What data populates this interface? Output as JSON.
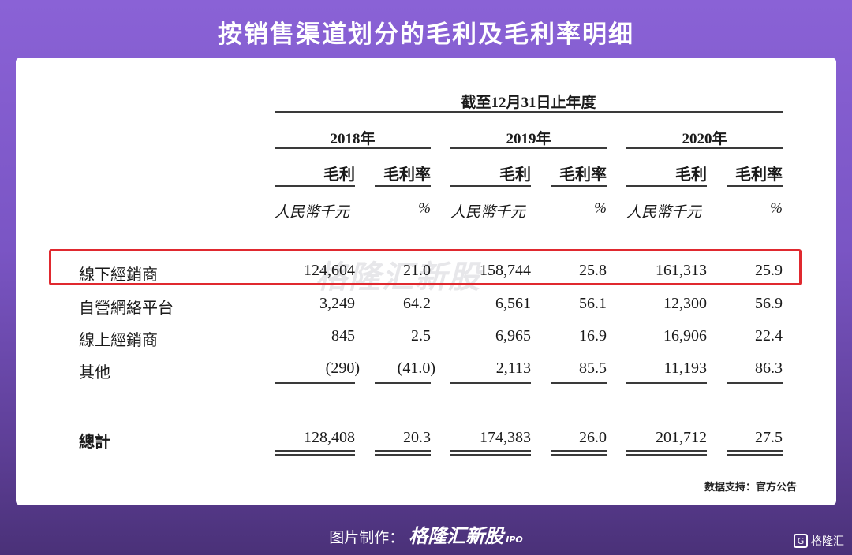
{
  "title": "按销售渠道划分的毛利及毛利率明细",
  "table": {
    "span_title": "截至12月31日止年度",
    "years": [
      "2018年",
      "2019年",
      "2020年"
    ],
    "col_headers": [
      "毛利",
      "毛利率",
      "毛利",
      "毛利率",
      "毛利",
      "毛利率"
    ],
    "units": [
      "人民幣千元",
      "%",
      "人民幣千元",
      "%",
      "人民幣千元",
      "%"
    ],
    "rows": [
      {
        "label": "線下經銷商",
        "values": [
          "124,604",
          "21.0",
          "158,744",
          "25.8",
          "161,313",
          "25.9"
        ],
        "highlighted": true
      },
      {
        "label": "自營網絡平台",
        "values": [
          "3,249",
          "64.2",
          "6,561",
          "56.1",
          "12,300",
          "56.9"
        ]
      },
      {
        "label": "線上經銷商",
        "values": [
          "845",
          "2.5",
          "6,965",
          "16.9",
          "16,906",
          "22.4"
        ]
      },
      {
        "label": "其他",
        "values": [
          "(290)",
          "(41.0)",
          "2,113",
          "85.5",
          "11,193",
          "86.3"
        ]
      }
    ],
    "total": {
      "label": "總計",
      "values": [
        "128,408",
        "20.3",
        "174,383",
        "26.0",
        "201,712",
        "27.5"
      ]
    }
  },
  "highlight_color": "#e0292f",
  "watermark": "格隆汇新股",
  "source": "数据支持：官方公告",
  "footer": {
    "prefix": "图片制作：",
    "brand": "格隆汇新股",
    "brand_sub": "IPO"
  },
  "corner_logo": "格隆汇"
}
